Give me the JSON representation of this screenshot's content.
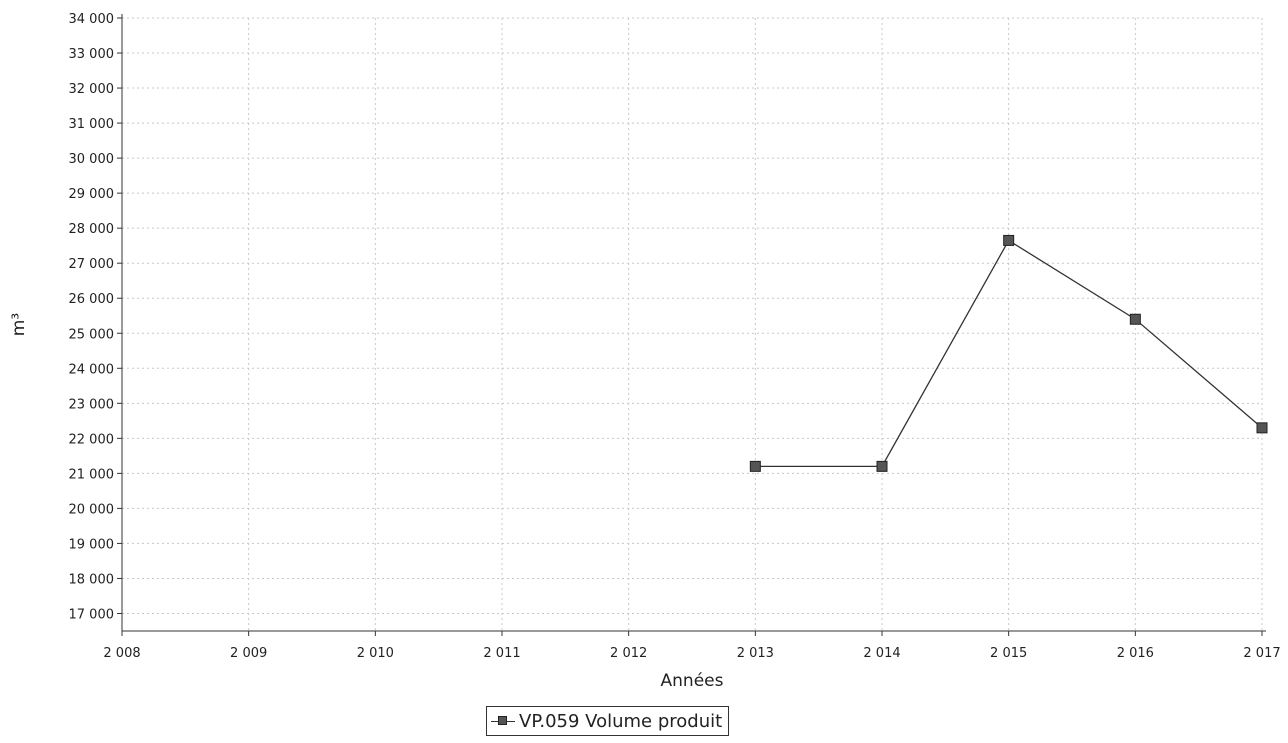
{
  "chart_data": {
    "type": "line",
    "xlabel": "Années",
    "ylabel": "m³",
    "x_ticks": [
      "2 008",
      "2 009",
      "2 010",
      "2 011",
      "2 012",
      "2 013",
      "2 014",
      "2 015",
      "2 016",
      "2 017"
    ],
    "x_tick_values": [
      2008,
      2009,
      2010,
      2011,
      2012,
      2013,
      2014,
      2015,
      2016,
      2017
    ],
    "y_ticks": [
      "17 000",
      "18 000",
      "19 000",
      "20 000",
      "21 000",
      "22 000",
      "23 000",
      "24 000",
      "25 000",
      "26 000",
      "27 000",
      "28 000",
      "29 000",
      "30 000",
      "31 000",
      "32 000",
      "33 000",
      "34 000"
    ],
    "y_tick_values": [
      17000,
      18000,
      19000,
      20000,
      21000,
      22000,
      23000,
      24000,
      25000,
      26000,
      27000,
      28000,
      29000,
      30000,
      31000,
      32000,
      33000,
      34000
    ],
    "xlim": [
      2008,
      2017
    ],
    "ylim": [
      16500,
      34000
    ],
    "grid": true,
    "legend_position": "bottom-center",
    "series": [
      {
        "name": "VP.059 Volume produit",
        "color": "#333333",
        "marker_color": "#555555",
        "x": [
          2013,
          2014,
          2015,
          2016,
          2017
        ],
        "y": [
          21200,
          21200,
          27650,
          25400,
          22300
        ]
      }
    ]
  }
}
